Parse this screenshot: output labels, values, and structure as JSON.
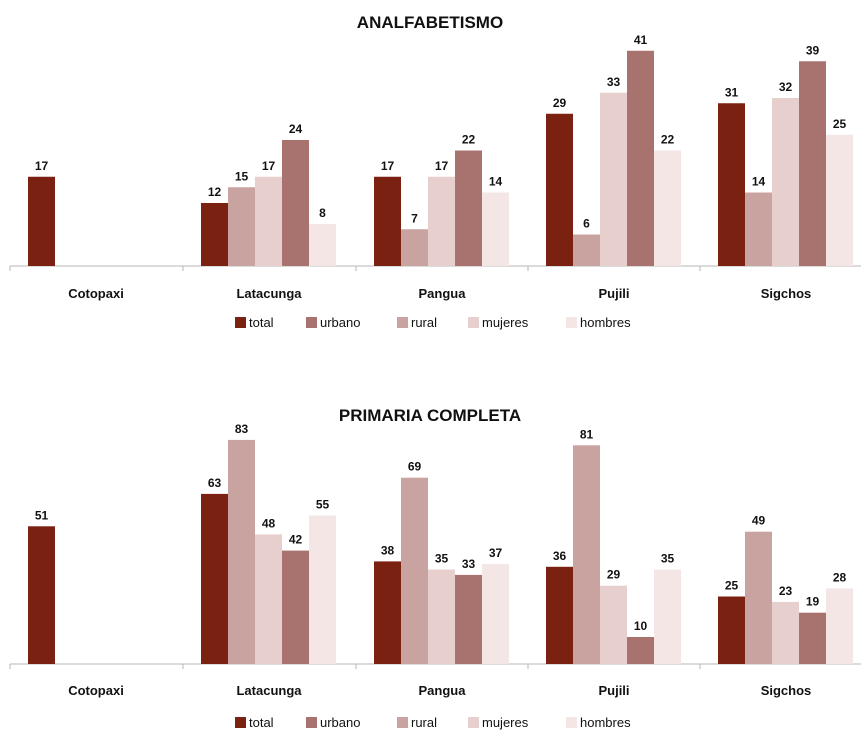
{
  "chart_data": [
    {
      "type": "bar",
      "title": "ANALFABETISMO",
      "categories": [
        "Cotopaxi",
        "Latacunga",
        "Pangua",
        "Pujili",
        "Sigchos"
      ],
      "series": [
        {
          "name": "total",
          "color": "#7b2112",
          "values": [
            17,
            12,
            17,
            29,
            31
          ]
        },
        {
          "name": "urbano",
          "color": "#a8736f",
          "values": [
            null,
            24,
            22,
            41,
            39
          ]
        },
        {
          "name": "rural",
          "color": "#c9a3a0",
          "values": [
            null,
            15,
            7,
            6,
            14
          ]
        },
        {
          "name": "mujeres",
          "color": "#e6cfcd",
          "values": [
            null,
            17,
            17,
            33,
            32
          ]
        },
        {
          "name": "hombres",
          "color": "#f3e6e5",
          "values": [
            null,
            8,
            14,
            22,
            25
          ]
        }
      ],
      "legend_position": "bottom",
      "grid": false
    },
    {
      "type": "bar",
      "title": "PRIMARIA COMPLETA",
      "categories": [
        "Cotopaxi",
        "Latacunga",
        "Pangua",
        "Pujili",
        "Sigchos"
      ],
      "series": [
        {
          "name": "total",
          "color": "#7b2112",
          "values": [
            51,
            63,
            38,
            36,
            25
          ]
        },
        {
          "name": "urbano",
          "color": "#a8736f",
          "values": [
            null,
            42,
            33,
            10,
            19
          ]
        },
        {
          "name": "rural",
          "color": "#c9a3a0",
          "values": [
            null,
            83,
            69,
            81,
            49
          ]
        },
        {
          "name": "mujeres",
          "color": "#e6cfcd",
          "values": [
            null,
            48,
            35,
            29,
            23
          ]
        },
        {
          "name": "hombres",
          "color": "#f3e6e5",
          "values": [
            null,
            55,
            37,
            35,
            28
          ]
        }
      ],
      "legend_position": "bottom",
      "grid": false
    }
  ]
}
